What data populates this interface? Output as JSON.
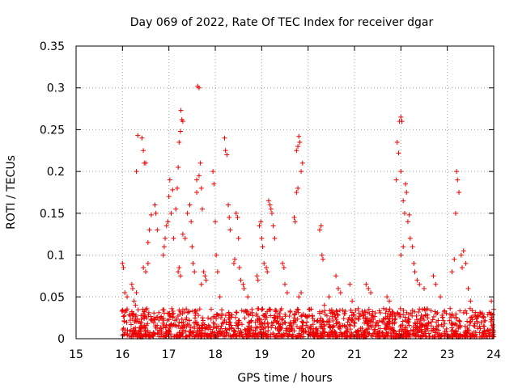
{
  "chart_data": {
    "type": "scatter",
    "title": "Day 069 of 2022, Rate Of TEC Index for receiver dgar",
    "xlabel": "GPS time / hours",
    "ylabel": "ROTI / TECUs",
    "xlim": [
      15,
      24
    ],
    "ylim": [
      0,
      0.35
    ],
    "x_ticks": [
      15,
      16,
      17,
      18,
      19,
      20,
      21,
      22,
      23,
      24
    ],
    "x_tick_labels": [
      "15",
      "16",
      "17",
      "18",
      "19",
      "20",
      "21",
      "22",
      "23",
      "24"
    ],
    "y_ticks": [
      0,
      0.05,
      0.1,
      0.15,
      0.2,
      0.25,
      0.3,
      0.35
    ],
    "y_tick_labels": [
      "0",
      "0.05",
      "0.1",
      "0.15",
      "0.2",
      "0.25",
      "0.3",
      "0.35"
    ],
    "grid": true,
    "marker": "plus",
    "marker_color": "#ee0000",
    "series": [
      {
        "name": "ROTI",
        "points": [
          [
            16.0,
            0.09
          ],
          [
            16.02,
            0.085
          ],
          [
            16.05,
            0.055
          ],
          [
            16.1,
            0.05
          ],
          [
            16.2,
            0.065
          ],
          [
            16.22,
            0.06
          ],
          [
            16.25,
            0.045
          ],
          [
            16.28,
            0.04
          ],
          [
            16.3,
            0.055
          ],
          [
            16.3,
            0.2
          ],
          [
            16.33,
            0.243
          ],
          [
            16.42,
            0.24
          ],
          [
            16.45,
            0.225
          ],
          [
            16.47,
            0.21
          ],
          [
            16.5,
            0.21
          ],
          [
            16.45,
            0.085
          ],
          [
            16.5,
            0.08
          ],
          [
            16.55,
            0.09
          ],
          [
            16.55,
            0.115
          ],
          [
            16.58,
            0.13
          ],
          [
            16.62,
            0.148
          ],
          [
            16.7,
            0.16
          ],
          [
            16.72,
            0.15
          ],
          [
            16.75,
            0.13
          ],
          [
            16.88,
            0.1
          ],
          [
            16.9,
            0.11
          ],
          [
            16.92,
            0.12
          ],
          [
            16.95,
            0.135
          ],
          [
            16.98,
            0.14
          ],
          [
            17.0,
            0.17
          ],
          [
            17.02,
            0.19
          ],
          [
            17.05,
            0.15
          ],
          [
            17.08,
            0.178
          ],
          [
            17.1,
            0.12
          ],
          [
            17.15,
            0.155
          ],
          [
            17.18,
            0.18
          ],
          [
            17.2,
            0.205
          ],
          [
            17.22,
            0.235
          ],
          [
            17.25,
            0.248
          ],
          [
            17.26,
            0.273
          ],
          [
            17.28,
            0.262
          ],
          [
            17.3,
            0.26
          ],
          [
            17.2,
            0.08
          ],
          [
            17.22,
            0.085
          ],
          [
            17.25,
            0.075
          ],
          [
            17.3,
            0.125
          ],
          [
            17.35,
            0.12
          ],
          [
            17.4,
            0.15
          ],
          [
            17.45,
            0.16
          ],
          [
            17.48,
            0.14
          ],
          [
            17.5,
            0.11
          ],
          [
            17.52,
            0.09
          ],
          [
            17.55,
            0.08
          ],
          [
            17.6,
            0.175
          ],
          [
            17.62,
            0.302
          ],
          [
            17.65,
            0.3
          ],
          [
            17.6,
            0.19
          ],
          [
            17.65,
            0.195
          ],
          [
            17.68,
            0.21
          ],
          [
            17.7,
            0.18
          ],
          [
            17.72,
            0.155
          ],
          [
            17.7,
            0.065
          ],
          [
            17.75,
            0.08
          ],
          [
            17.78,
            0.075
          ],
          [
            17.8,
            0.07
          ],
          [
            17.95,
            0.2
          ],
          [
            17.97,
            0.185
          ],
          [
            18.0,
            0.14
          ],
          [
            18.02,
            0.1
          ],
          [
            18.05,
            0.08
          ],
          [
            18.1,
            0.05
          ],
          [
            18.2,
            0.24
          ],
          [
            18.22,
            0.225
          ],
          [
            18.25,
            0.22
          ],
          [
            18.28,
            0.16
          ],
          [
            18.3,
            0.145
          ],
          [
            18.32,
            0.13
          ],
          [
            18.4,
            0.09
          ],
          [
            18.42,
            0.095
          ],
          [
            18.45,
            0.15
          ],
          [
            18.48,
            0.145
          ],
          [
            18.5,
            0.12
          ],
          [
            18.52,
            0.085
          ],
          [
            18.55,
            0.07
          ],
          [
            18.6,
            0.065
          ],
          [
            18.62,
            0.06
          ],
          [
            18.7,
            0.05
          ],
          [
            18.9,
            0.075
          ],
          [
            18.92,
            0.07
          ],
          [
            18.95,
            0.135
          ],
          [
            18.98,
            0.14
          ],
          [
            19.0,
            0.12
          ],
          [
            19.02,
            0.11
          ],
          [
            19.05,
            0.09
          ],
          [
            19.1,
            0.085
          ],
          [
            19.12,
            0.08
          ],
          [
            19.15,
            0.165
          ],
          [
            19.18,
            0.16
          ],
          [
            19.2,
            0.155
          ],
          [
            19.22,
            0.15
          ],
          [
            19.25,
            0.135
          ],
          [
            19.28,
            0.12
          ],
          [
            19.45,
            0.09
          ],
          [
            19.48,
            0.085
          ],
          [
            19.5,
            0.065
          ],
          [
            19.55,
            0.055
          ],
          [
            19.7,
            0.145
          ],
          [
            19.72,
            0.14
          ],
          [
            19.75,
            0.175
          ],
          [
            19.78,
            0.18
          ],
          [
            19.75,
            0.225
          ],
          [
            19.78,
            0.23
          ],
          [
            19.8,
            0.242
          ],
          [
            19.82,
            0.235
          ],
          [
            19.85,
            0.2
          ],
          [
            19.88,
            0.21
          ],
          [
            19.8,
            0.05
          ],
          [
            19.85,
            0.055
          ],
          [
            20.25,
            0.13
          ],
          [
            20.28,
            0.135
          ],
          [
            20.3,
            0.1
          ],
          [
            20.32,
            0.095
          ],
          [
            20.35,
            0.04
          ],
          [
            20.45,
            0.05
          ],
          [
            20.6,
            0.075
          ],
          [
            20.65,
            0.06
          ],
          [
            20.7,
            0.055
          ],
          [
            20.9,
            0.065
          ],
          [
            20.95,
            0.045
          ],
          [
            21.25,
            0.065
          ],
          [
            21.3,
            0.06
          ],
          [
            21.35,
            0.055
          ],
          [
            21.7,
            0.05
          ],
          [
            21.75,
            0.045
          ],
          [
            21.9,
            0.19
          ],
          [
            21.92,
            0.235
          ],
          [
            21.95,
            0.222
          ],
          [
            21.97,
            0.26
          ],
          [
            22.0,
            0.265
          ],
          [
            22.02,
            0.26
          ],
          [
            22.0,
            0.2
          ],
          [
            22.05,
            0.165
          ],
          [
            22.08,
            0.15
          ],
          [
            22.1,
            0.185
          ],
          [
            22.12,
            0.175
          ],
          [
            22.15,
            0.14
          ],
          [
            22.18,
            0.148
          ],
          [
            22.2,
            0.12
          ],
          [
            22.25,
            0.11
          ],
          [
            22.28,
            0.09
          ],
          [
            22.3,
            0.08
          ],
          [
            22.0,
            0.1
          ],
          [
            22.05,
            0.11
          ],
          [
            22.35,
            0.07
          ],
          [
            22.4,
            0.065
          ],
          [
            22.5,
            0.06
          ],
          [
            22.7,
            0.075
          ],
          [
            22.75,
            0.065
          ],
          [
            22.85,
            0.05
          ],
          [
            23.1,
            0.08
          ],
          [
            23.15,
            0.095
          ],
          [
            23.18,
            0.15
          ],
          [
            23.2,
            0.2
          ],
          [
            23.22,
            0.19
          ],
          [
            23.25,
            0.175
          ],
          [
            23.3,
            0.1
          ],
          [
            23.32,
            0.085
          ],
          [
            23.35,
            0.105
          ],
          [
            23.4,
            0.09
          ],
          [
            23.45,
            0.06
          ],
          [
            23.5,
            0.045
          ],
          [
            23.95,
            0.045
          ],
          [
            24.0,
            0.035
          ]
        ]
      }
    ]
  }
}
